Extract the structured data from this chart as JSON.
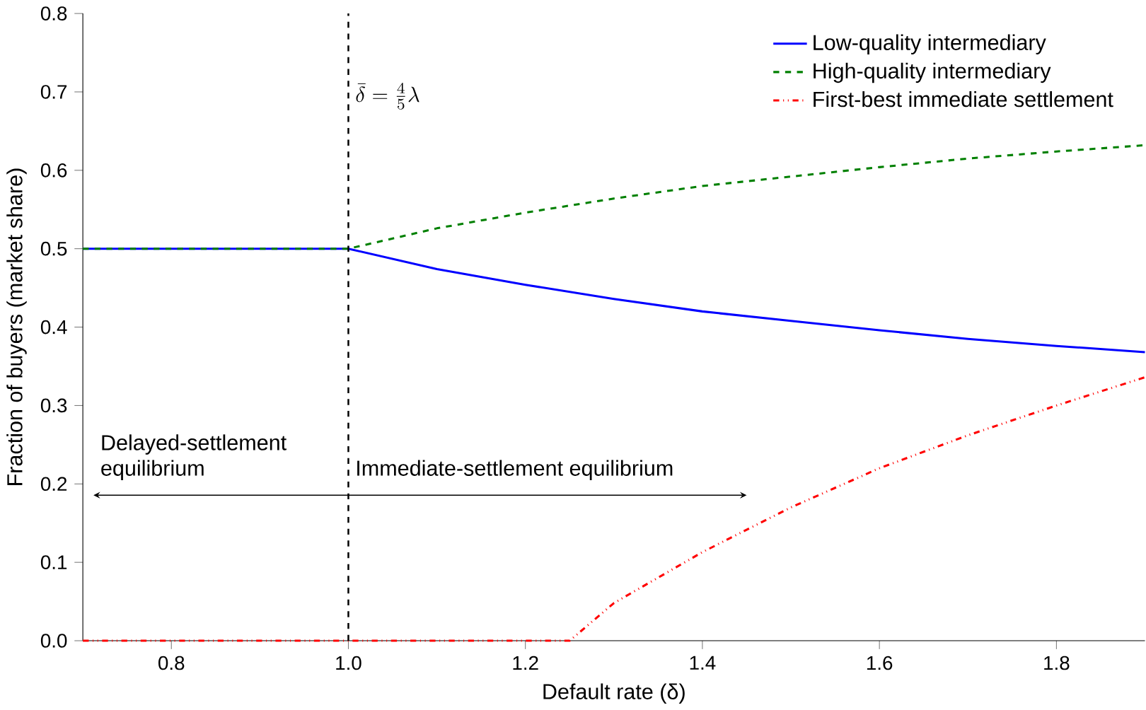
{
  "chart_data": {
    "type": "line",
    "xlabel": "Default rate (δ)",
    "ylabel": "Fraction of buyers (market share)",
    "x": [
      0.7,
      0.8,
      0.9,
      1.0,
      1.1,
      1.2,
      1.3,
      1.4,
      1.5,
      1.6,
      1.7,
      1.8,
      1.9
    ],
    "series": [
      {
        "name": "Low-quality intermediary",
        "color": "#0000ff",
        "line_style": "solid",
        "values": [
          0.5,
          0.5,
          0.5,
          0.5,
          0.474,
          0.454,
          0.436,
          0.42,
          0.408,
          0.396,
          0.385,
          0.376,
          0.368
        ]
      },
      {
        "name": "High-quality intermediary",
        "color": "#008000",
        "line_style": "dashed",
        "values": [
          0.5,
          0.5,
          0.5,
          0.5,
          0.526,
          0.546,
          0.564,
          0.58,
          0.592,
          0.604,
          0.615,
          0.624,
          0.632
        ]
      },
      {
        "name": "First-best immediate settlement",
        "color": "#ff0000",
        "line_style": "dotted",
        "x": [
          0.7,
          0.8,
          0.9,
          1.0,
          1.1,
          1.2,
          1.25,
          1.3,
          1.4,
          1.5,
          1.6,
          1.7,
          1.8,
          1.9
        ],
        "values": [
          0,
          0,
          0,
          0,
          0,
          0,
          0,
          0.048,
          0.113,
          0.17,
          0.22,
          0.262,
          0.3,
          0.336
        ]
      }
    ],
    "xlim": [
      0.7,
      1.9
    ],
    "ylim": [
      0,
      0.8
    ],
    "xticks": [
      0.8,
      {
        "value": 1,
        "label": "1.0"
      },
      1.2,
      1.4,
      1.6,
      1.8
    ],
    "yticks": [
      {
        "value": 0,
        "label": "0.0"
      },
      0.1,
      0.2,
      0.3,
      0.4,
      0.5,
      0.6,
      0.7,
      0.8
    ],
    "ref_lines": [
      {
        "axis": "x",
        "value": 1.0,
        "color": "#000000",
        "line_style": "dashed",
        "label": "\\bar{\\delta} = \\frac{4}{5}\\lambda"
      }
    ],
    "annotations": [
      "Delayed-settlement equilibrium",
      "Immediate-settlement equilibrium"
    ],
    "grid": false,
    "legend": "top right",
    "marker": "none"
  }
}
